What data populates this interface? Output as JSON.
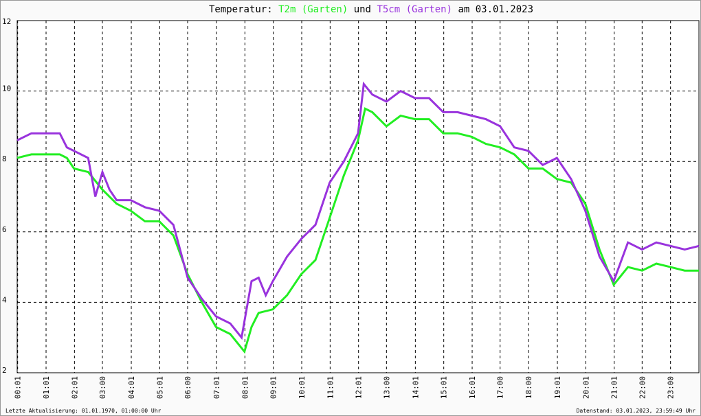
{
  "chart_data": {
    "type": "line",
    "title_prefix": "Temperatur:",
    "title_joiner": "und",
    "title_suffix": "am 03.01.2023",
    "xlim": [
      0,
      24
    ],
    "ylim": [
      2,
      12
    ],
    "yticks": [
      2,
      4,
      6,
      8,
      10,
      12
    ],
    "xticks": [
      {
        "value": 0.0167,
        "label": "00:01"
      },
      {
        "value": 1.0167,
        "label": "01:01"
      },
      {
        "value": 2.0167,
        "label": "02:01"
      },
      {
        "value": 3,
        "label": "03:00"
      },
      {
        "value": 4.0167,
        "label": "04:01"
      },
      {
        "value": 5.0167,
        "label": "05:01"
      },
      {
        "value": 6,
        "label": "06:00"
      },
      {
        "value": 7.0167,
        "label": "07:01"
      },
      {
        "value": 8.0167,
        "label": "08:01"
      },
      {
        "value": 9.0167,
        "label": "09:01"
      },
      {
        "value": 10.0167,
        "label": "10:01"
      },
      {
        "value": 11.0167,
        "label": "11:01"
      },
      {
        "value": 12.0167,
        "label": "12:01"
      },
      {
        "value": 13,
        "label": "13:00"
      },
      {
        "value": 14.0167,
        "label": "14:01"
      },
      {
        "value": 15.0167,
        "label": "15:01"
      },
      {
        "value": 16.0167,
        "label": "16:01"
      },
      {
        "value": 17,
        "label": "17:00"
      },
      {
        "value": 18,
        "label": "18:00"
      },
      {
        "value": 19.0167,
        "label": "19:01"
      },
      {
        "value": 20.0167,
        "label": "20:01"
      },
      {
        "value": 21.0167,
        "label": "21:01"
      },
      {
        "value": 22,
        "label": "22:00"
      },
      {
        "value": 23,
        "label": "23:00"
      }
    ],
    "grid": true,
    "series": [
      {
        "name": "T2m (Garten)",
        "color": "#22ee22",
        "x": [
          0,
          0.5,
          1,
          1.5,
          1.75,
          2,
          2.5,
          3,
          3.5,
          4,
          4.5,
          5,
          5.5,
          6,
          6.5,
          7,
          7.5,
          8,
          8.25,
          8.5,
          9,
          9.5,
          10,
          10.5,
          11,
          11.5,
          12,
          12.25,
          12.5,
          13,
          13.5,
          14,
          14.5,
          15,
          15.5,
          16,
          16.5,
          17,
          17.5,
          18,
          18.5,
          19,
          19.5,
          20,
          20.5,
          21,
          21.5,
          22,
          22.5,
          23,
          23.5,
          24
        ],
        "values": [
          8.1,
          8.2,
          8.2,
          8.2,
          8.1,
          7.8,
          7.7,
          7.2,
          6.8,
          6.6,
          6.3,
          6.3,
          5.9,
          4.8,
          4.0,
          3.3,
          3.1,
          2.6,
          3.3,
          3.7,
          3.8,
          4.2,
          4.8,
          5.2,
          6.4,
          7.6,
          8.6,
          9.5,
          9.4,
          9.0,
          9.3,
          9.2,
          9.2,
          8.8,
          8.8,
          8.7,
          8.5,
          8.4,
          8.2,
          7.8,
          7.8,
          7.5,
          7.4,
          6.8,
          5.5,
          4.5,
          5.0,
          4.9,
          5.1,
          5.0,
          4.9,
          4.9
        ]
      },
      {
        "name": "T5cm (Garten)",
        "color": "#9933dd",
        "x": [
          0,
          0.5,
          1,
          1.5,
          1.75,
          2,
          2.5,
          2.75,
          3,
          3.25,
          3.5,
          4,
          4.5,
          5,
          5.5,
          6,
          6.5,
          7,
          7.5,
          7.9,
          8.25,
          8.5,
          8.75,
          9,
          9.5,
          10,
          10.5,
          11,
          11.5,
          12,
          12.2,
          12.5,
          13,
          13.5,
          14,
          14.5,
          15,
          15.5,
          16,
          16.5,
          17,
          17.5,
          18,
          18.5,
          19,
          19.5,
          20,
          20.5,
          21,
          21.5,
          22,
          22.5,
          23,
          23.5,
          24
        ],
        "values": [
          8.6,
          8.8,
          8.8,
          8.8,
          8.4,
          8.3,
          8.1,
          7.0,
          7.7,
          7.2,
          6.9,
          6.9,
          6.7,
          6.6,
          6.2,
          4.7,
          4.1,
          3.6,
          3.4,
          3.0,
          4.6,
          4.7,
          4.2,
          4.6,
          5.3,
          5.8,
          6.2,
          7.4,
          8.0,
          8.8,
          10.2,
          9.9,
          9.7,
          10.0,
          9.8,
          9.8,
          9.4,
          9.4,
          9.3,
          9.2,
          9.0,
          8.4,
          8.3,
          7.9,
          8.1,
          7.5,
          6.6,
          5.3,
          4.6,
          5.7,
          5.5,
          5.7,
          5.6,
          5.5,
          5.6
        ]
      }
    ],
    "footer_left": "Letzte Aktualisierung: 01.01.1970, 01:00:00 Uhr",
    "footer_right": "Datenstand: 03.01.2023, 23:59:49 Uhr"
  }
}
